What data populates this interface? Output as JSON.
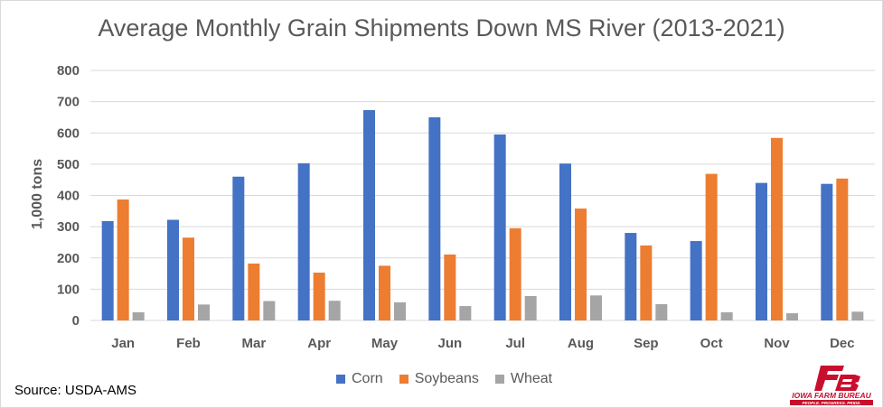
{
  "chart_data": {
    "type": "bar",
    "title": "Average Monthly Grain Shipments Down MS River (2013-2021)",
    "xlabel": "",
    "ylabel": "1,000 tons",
    "ylim": [
      0,
      800
    ],
    "yticks": [
      0,
      100,
      200,
      300,
      400,
      500,
      600,
      700,
      800
    ],
    "grid": true,
    "legend_position": "bottom",
    "categories": [
      "Jan",
      "Feb",
      "Mar",
      "Apr",
      "May",
      "Jun",
      "Jul",
      "Aug",
      "Sep",
      "Oct",
      "Nov",
      "Dec"
    ],
    "series": [
      {
        "name": "Corn",
        "color": "#4472c4",
        "values": [
          318,
          322,
          460,
          503,
          673,
          650,
          595,
          502,
          280,
          254,
          440,
          437
        ]
      },
      {
        "name": "Soybeans",
        "color": "#ed7d31",
        "values": [
          387,
          265,
          182,
          153,
          175,
          211,
          295,
          358,
          240,
          469,
          584,
          454
        ]
      },
      {
        "name": "Wheat",
        "color": "#a5a5a5",
        "values": [
          26,
          51,
          62,
          63,
          58,
          46,
          78,
          80,
          52,
          26,
          23,
          28
        ]
      }
    ]
  },
  "source_text": "Source: USDA-AMS",
  "logo": {
    "icon": "farm-bureau-fb-icon",
    "org_name": "IOWA FARM BUREAU",
    "tagline": "PEOPLE. PROGRESS. PRIDE.",
    "brand_color": "#c8102e"
  }
}
